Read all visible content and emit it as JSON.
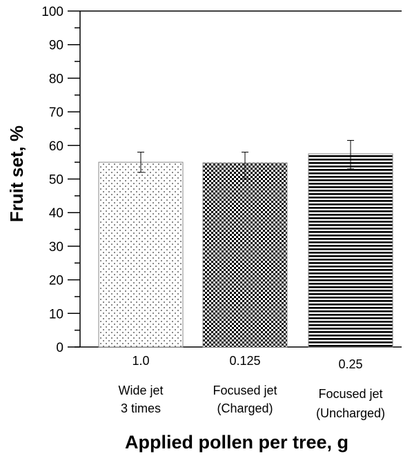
{
  "chart_data": {
    "type": "bar",
    "ylabel": "Fruit set, %",
    "xlabel": "Applied pollen per tree, g",
    "ylim": [
      0,
      100
    ],
    "yticks": [
      0,
      10,
      20,
      30,
      40,
      50,
      60,
      70,
      80,
      90,
      100
    ],
    "grid": false,
    "categories": [
      {
        "value_label": "1.0",
        "group_line1": "Wide jet",
        "group_line2": "3 times",
        "pattern": "dots"
      },
      {
        "value_label": "0.125",
        "group_line1": "Focused jet",
        "group_line2": "(Charged)",
        "pattern": "checker"
      },
      {
        "value_label": "0.25",
        "group_line1": "Focused jet",
        "group_line2": "(Uncharged)",
        "pattern": "horizontal-stripes"
      }
    ],
    "values": [
      55,
      54.8,
      57.5
    ],
    "error_low": [
      52,
      50,
      53
    ],
    "error_high": [
      58,
      58,
      61.5
    ]
  }
}
